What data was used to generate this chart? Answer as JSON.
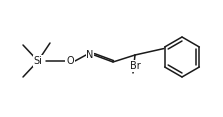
{
  "bg_color": "#ffffff",
  "line_color": "#1a1a1a",
  "line_width": 1.1,
  "font_size": 7.0,
  "figsize": [
    2.23,
    1.17
  ],
  "dpi": 100,
  "si_label": "Si",
  "o_label": "O",
  "n_label": "N",
  "br_label": "Br"
}
